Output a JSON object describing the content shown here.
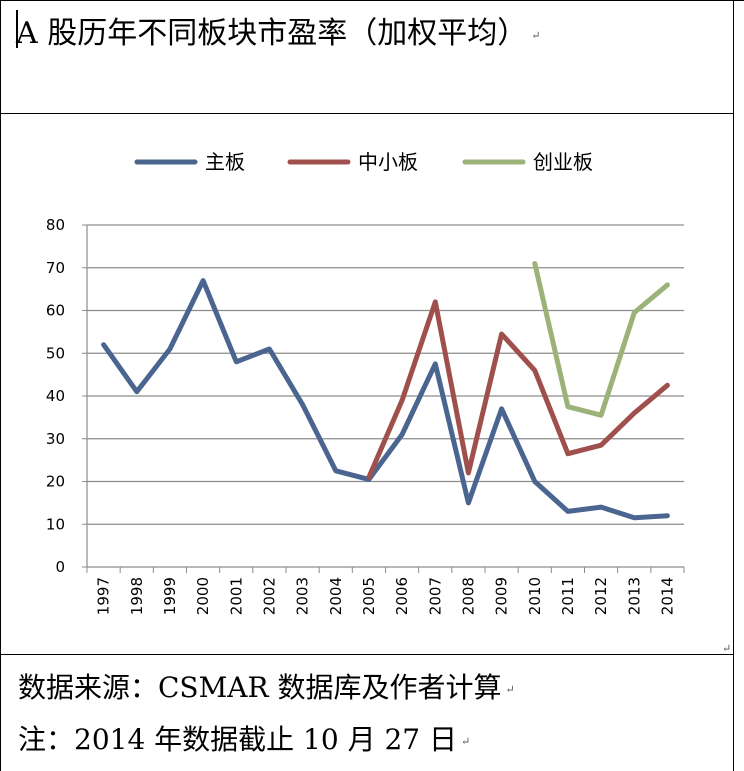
{
  "title": "A 股历年不同板块市盈率（加权平均）",
  "notes": {
    "source": "数据来源：CSMAR 数据库及作者计算",
    "footnote": "注：2014 年数据截止 10 月 27 日"
  },
  "paragraph_mark": "↵",
  "chart_data": {
    "type": "line",
    "title": "",
    "xlabel": "",
    "ylabel": "",
    "categories": [
      "1997",
      "1998",
      "1999",
      "2000",
      "2001",
      "2002",
      "2003",
      "2004",
      "2005",
      "2006",
      "2007",
      "2008",
      "2009",
      "2010",
      "2011",
      "2012",
      "2013",
      "2014"
    ],
    "ylim": [
      0,
      80
    ],
    "yticks": [
      0,
      10,
      20,
      30,
      40,
      50,
      60,
      70,
      80
    ],
    "grid": true,
    "legend_position": "top",
    "series": [
      {
        "name": "主板",
        "color": "#4a6590",
        "values": [
          52,
          41,
          51,
          67,
          48,
          51,
          38,
          22.5,
          20.5,
          31,
          47.5,
          15,
          37,
          20,
          13,
          14,
          11.5,
          12
        ]
      },
      {
        "name": "中小板",
        "color": "#a0504c",
        "values": [
          null,
          null,
          null,
          null,
          null,
          null,
          null,
          null,
          21,
          39,
          62,
          22,
          54.5,
          46,
          26.5,
          28.5,
          36,
          42.5
        ]
      },
      {
        "name": "创业板",
        "color": "#9bb279",
        "values": [
          null,
          null,
          null,
          null,
          null,
          null,
          null,
          null,
          null,
          null,
          null,
          null,
          null,
          71,
          37.5,
          35.5,
          59.5,
          66
        ]
      }
    ]
  }
}
